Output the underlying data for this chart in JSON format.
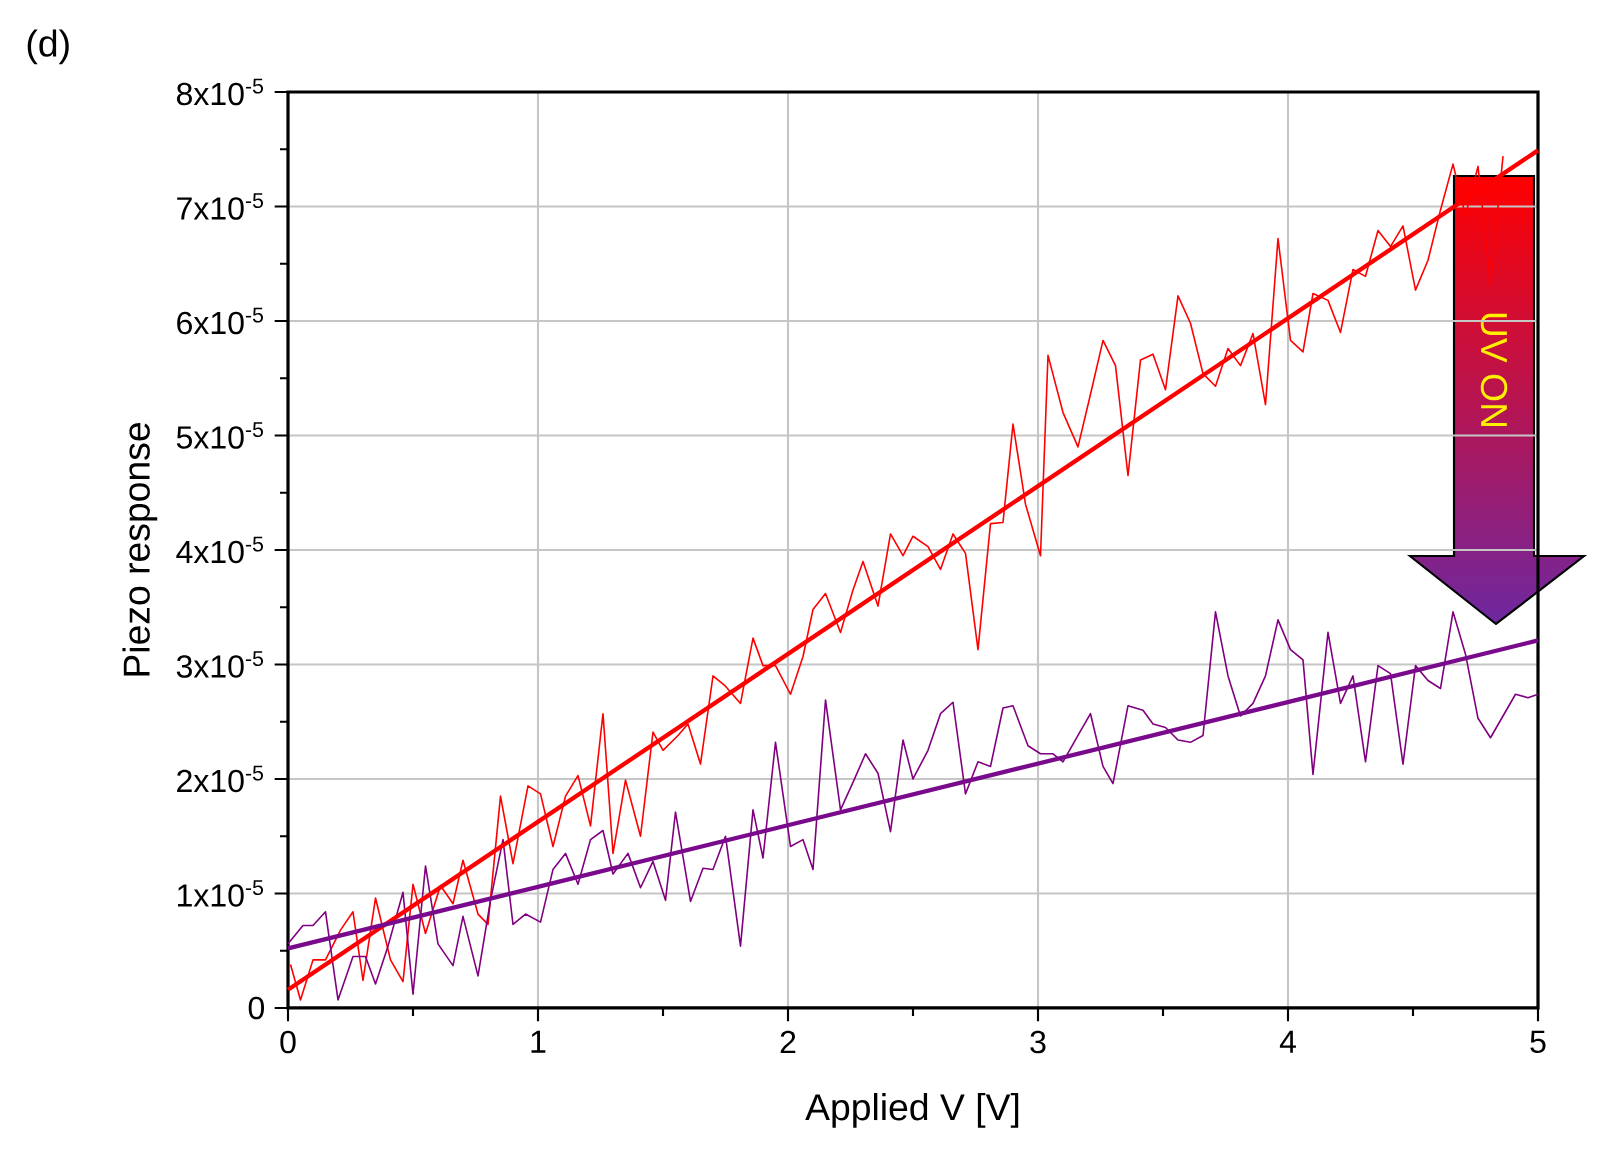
{
  "chart_data": {
    "type": "line",
    "xlabel": "Applied V [V]",
    "ylabel": "Piezo response",
    "annotations": [
      "(d)",
      "UV ON"
    ],
    "xlim": [
      0,
      5
    ],
    "xticks": [
      0,
      1,
      2,
      3,
      4,
      5
    ],
    "ylim": [
      0,
      8e-05
    ],
    "yticks": [
      0,
      {
        "value": 1e-05,
        "label": "1x10$^{-5}$"
      },
      {
        "value": 2e-05,
        "label": "2x10$^{-5}$"
      },
      {
        "value": 3e-05,
        "label": "3x10$^{-5}$"
      },
      {
        "value": 4e-05,
        "label": "4x10$^{-5}$"
      },
      {
        "value": 5e-05,
        "label": "5x10$^{-5}$"
      },
      {
        "value": 6e-05,
        "label": "6x10$^{-5}$"
      },
      {
        "value": 7e-05,
        "label": "7x10$^{-5}$"
      },
      {
        "value": 8e-05,
        "label": "8x10$^{-5}$"
      }
    ],
    "grid": true,
    "marker": "none",
    "line_style": "solid",
    "series": [
      {
        "color": "#ff0000",
        "x": [
          0.01,
          0.05,
          0.1,
          0.15,
          0.21,
          0.26,
          0.3,
          0.35,
          0.41,
          0.46,
          0.5,
          0.55,
          0.61,
          0.66,
          0.7,
          0.76,
          0.8,
          0.85,
          0.9,
          0.96,
          1.01,
          1.06,
          1.11,
          1.16,
          1.21,
          1.26,
          1.3,
          1.35,
          1.41,
          1.46,
          1.5,
          1.56,
          1.6,
          1.65,
          1.7,
          1.75,
          1.81,
          1.86,
          1.9,
          1.95,
          2.01,
          2.06,
          2.1,
          2.15,
          2.21,
          2.26,
          2.3,
          2.36,
          2.41,
          2.46,
          2.5,
          2.56,
          2.61,
          2.66,
          2.71,
          2.76,
          2.81,
          2.86,
          2.9,
          2.95,
          3.01,
          3.04,
          3.1,
          3.16,
          3.21,
          3.26,
          3.31,
          3.36,
          3.41,
          3.46,
          3.51,
          3.56,
          3.61,
          3.66,
          3.71,
          3.76,
          3.81,
          3.86,
          3.91,
          3.96,
          4.01,
          4.06,
          4.1,
          4.16,
          4.21,
          4.26,
          4.31,
          4.36,
          4.41,
          4.46,
          4.51,
          4.56,
          4.61,
          4.66,
          4.71,
          4.76,
          4.81,
          4.86
        ],
        "values": [
          3.8e-06,
          7e-07,
          4.2e-06,
          4.2e-06,
          6.8e-06,
          8.4e-06,
          2.4e-06,
          9.6e-06,
          4.2e-06,
          2.3e-06,
          1.08e-05,
          6.5e-06,
          1.07e-05,
          9.1e-06,
          1.29e-05,
          8.2e-06,
          7.3e-06,
          1.85e-05,
          1.26e-05,
          1.94e-05,
          1.87e-05,
          1.41e-05,
          1.85e-05,
          2.03e-05,
          1.59e-05,
          2.57e-05,
          1.35e-05,
          1.99e-05,
          1.5e-05,
          2.41e-05,
          2.25e-05,
          2.38e-05,
          2.48e-05,
          2.13e-05,
          2.9e-05,
          2.81e-05,
          2.66e-05,
          3.23e-05,
          2.99e-05,
          2.99e-05,
          2.74e-05,
          3.07e-05,
          3.48e-05,
          3.62e-05,
          3.28e-05,
          3.65e-05,
          3.9e-05,
          3.51e-05,
          4.14e-05,
          3.95e-05,
          4.12e-05,
          4.03e-05,
          3.83e-05,
          4.14e-05,
          3.97e-05,
          3.13e-05,
          4.23e-05,
          4.24e-05,
          5.1e-05,
          4.4e-05,
          3.95e-05,
          5.7e-05,
          5.2e-05,
          4.9e-05,
          5.36e-05,
          5.83e-05,
          5.61e-05,
          4.65e-05,
          5.66e-05,
          5.71e-05,
          5.4e-05,
          6.22e-05,
          5.98e-05,
          5.54e-05,
          5.43e-05,
          5.76e-05,
          5.61e-05,
          5.89e-05,
          5.27e-05,
          6.72e-05,
          5.83e-05,
          5.73e-05,
          6.24e-05,
          6.18e-05,
          5.9e-05,
          6.45e-05,
          6.39e-05,
          6.79e-05,
          6.65e-05,
          6.83e-05,
          6.27e-05,
          6.53e-05,
          6.97e-05,
          7.37e-05,
          6.92e-05,
          7.35e-05,
          6.32e-05,
          7.44e-05
        ]
      },
      {
        "color": "#800080",
        "x": [
          0,
          0.06,
          0.1,
          0.15,
          0.2,
          0.26,
          0.31,
          0.35,
          0.4,
          0.46,
          0.5,
          0.55,
          0.6,
          0.66,
          0.7,
          0.76,
          0.81,
          0.86,
          0.9,
          0.95,
          1.01,
          1.06,
          1.11,
          1.16,
          1.21,
          1.26,
          1.3,
          1.36,
          1.41,
          1.46,
          1.51,
          1.55,
          1.61,
          1.66,
          1.7,
          1.75,
          1.81,
          1.86,
          1.9,
          1.95,
          2.01,
          2.06,
          2.1,
          2.15,
          2.21,
          2.26,
          2.31,
          2.36,
          2.41,
          2.46,
          2.5,
          2.56,
          2.61,
          2.66,
          2.71,
          2.76,
          2.81,
          2.86,
          2.9,
          2.96,
          3.01,
          3.06,
          3.1,
          3.16,
          3.21,
          3.26,
          3.3,
          3.36,
          3.42,
          3.46,
          3.51,
          3.56,
          3.61,
          3.66,
          3.71,
          3.76,
          3.81,
          3.86,
          3.91,
          3.96,
          4.01,
          4.06,
          4.1,
          4.16,
          4.21,
          4.26,
          4.31,
          4.36,
          4.41,
          4.46,
          4.51,
          4.56,
          4.61,
          4.66,
          4.71,
          4.76,
          4.81,
          4.86,
          4.91,
          4.96,
          5.0
        ],
        "values": [
          5.6e-06,
          7.2e-06,
          7.2e-06,
          8.4e-06,
          7e-07,
          4.5e-06,
          4.5e-06,
          2.1e-06,
          5.4e-06,
          1.01e-05,
          1.2e-06,
          1.24e-05,
          5.6e-06,
          3.7e-06,
          8e-06,
          2.8e-06,
          9.4e-06,
          1.47e-05,
          7.3e-06,
          8.2e-06,
          7.5e-06,
          1.21e-05,
          1.35e-05,
          1.08e-05,
          1.47e-05,
          1.55e-05,
          1.17e-05,
          1.35e-05,
          1.05e-05,
          1.28e-05,
          9.4e-06,
          1.71e-05,
          9.3e-06,
          1.22e-05,
          1.21e-05,
          1.5e-05,
          5.4e-06,
          1.73e-05,
          1.31e-05,
          2.32e-05,
          1.41e-05,
          1.47e-05,
          1.21e-05,
          2.69e-05,
          1.73e-05,
          1.97e-05,
          2.22e-05,
          2.05e-05,
          1.54e-05,
          2.34e-05,
          2e-05,
          2.25e-05,
          2.57e-05,
          2.67e-05,
          1.87e-05,
          2.15e-05,
          2.11e-05,
          2.62e-05,
          2.64e-05,
          2.29e-05,
          2.22e-05,
          2.22e-05,
          2.15e-05,
          2.38e-05,
          2.57e-05,
          2.11e-05,
          1.96e-05,
          2.64e-05,
          2.6e-05,
          2.48e-05,
          2.45e-05,
          2.34e-05,
          2.32e-05,
          2.38e-05,
          3.46e-05,
          2.9e-05,
          2.55e-05,
          2.66e-05,
          2.9e-05,
          3.39e-05,
          3.13e-05,
          3.04e-05,
          2.04e-05,
          3.28e-05,
          2.66e-05,
          2.9e-05,
          2.15e-05,
          2.99e-05,
          2.92e-05,
          2.13e-05,
          2.99e-05,
          2.86e-05,
          2.79e-05,
          3.46e-05,
          3.09e-05,
          2.53e-05,
          2.36e-05,
          2.55e-05,
          2.74e-05,
          2.71e-05,
          2.74e-05
        ]
      },
      {
        "color": "#ff0000",
        "x": [
          0,
          5
        ],
        "values": [
          1.6e-06,
          7.49e-05
        ]
      },
      {
        "color": "#7a0a8c",
        "x": [
          0,
          5
        ],
        "values": [
          5.2e-06,
          3.21e-05
        ]
      }
    ]
  }
}
